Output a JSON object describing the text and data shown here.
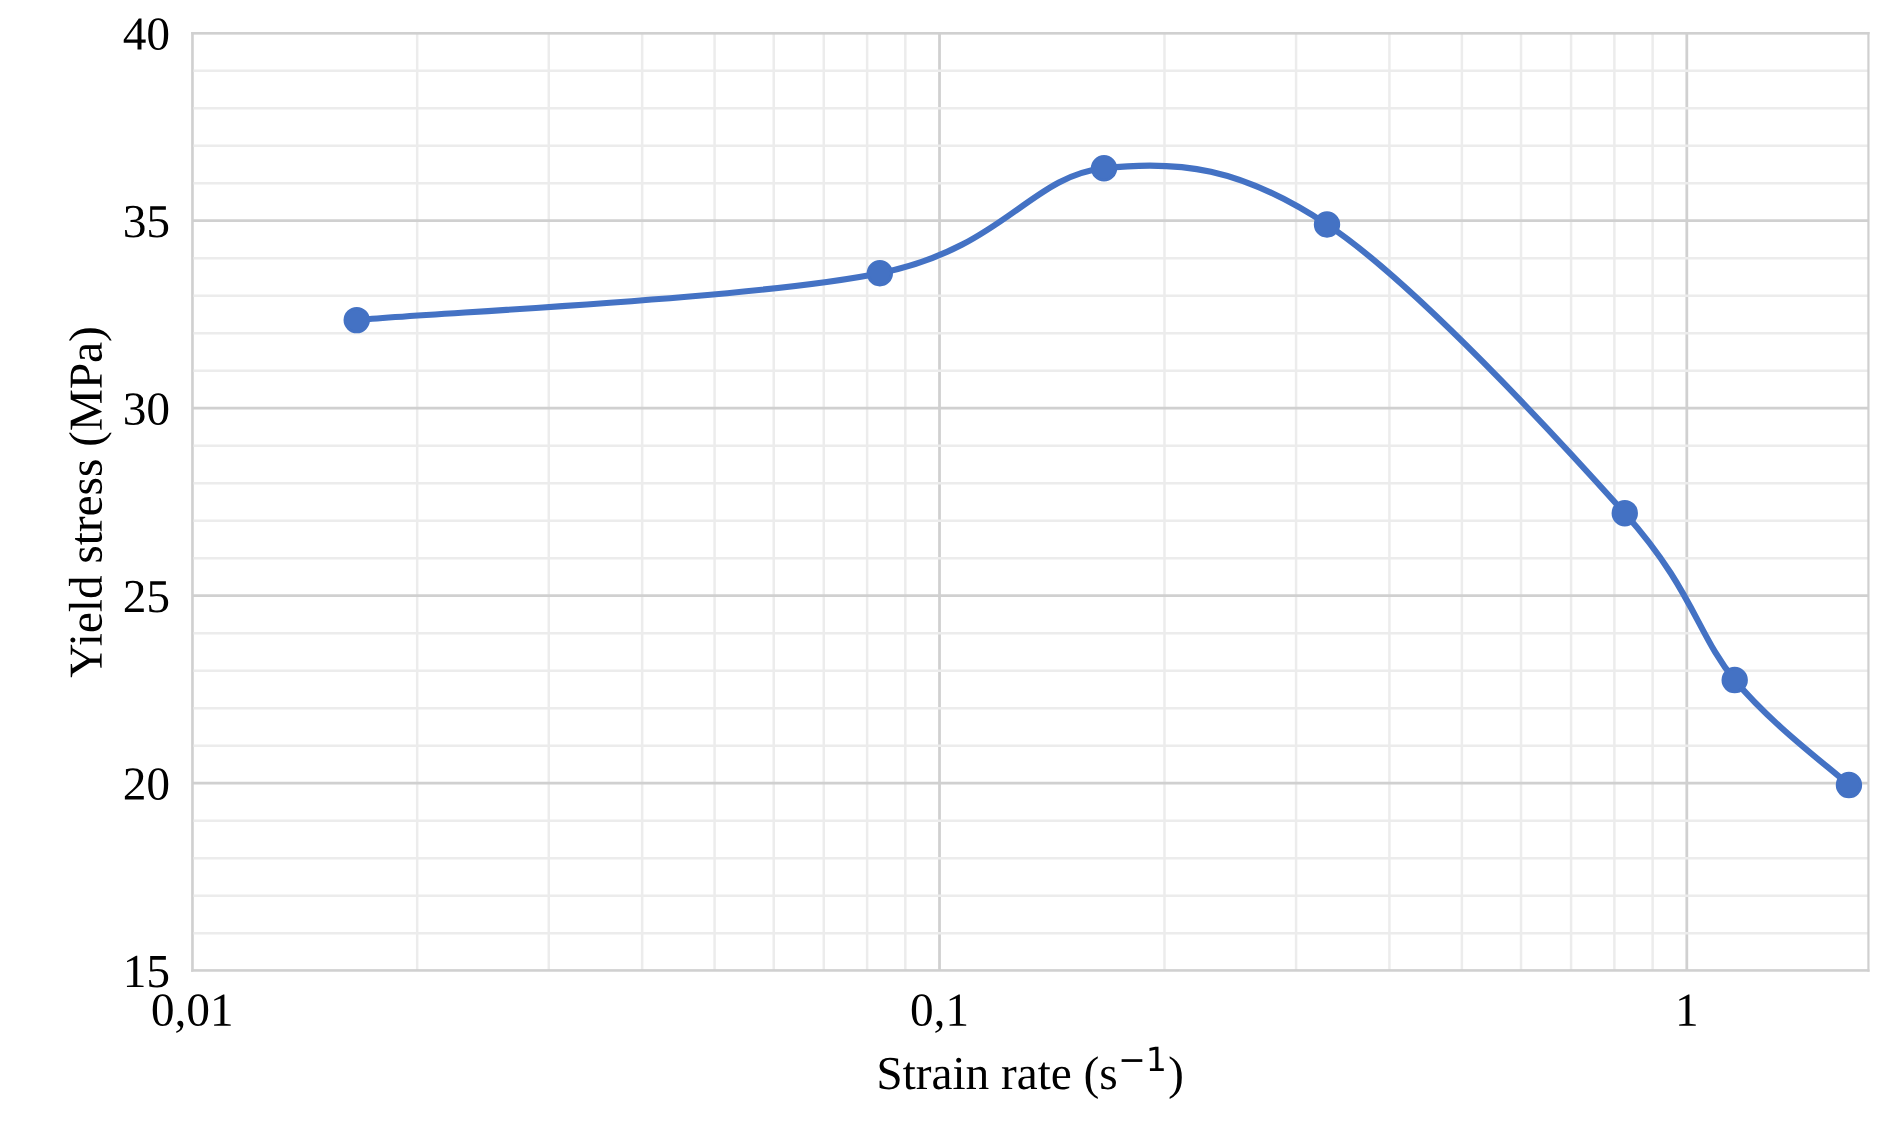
{
  "chart_data": {
    "type": "line",
    "xlabel": "Strain rate (s$^{−1}$)",
    "ylabel": "Yield stress (MPa)",
    "x": [
      0.0166,
      0.0832,
      0.166,
      0.33,
      0.826,
      1.159,
      1.648
    ],
    "series": [
      {
        "color": "#4472c4",
        "values": [
          32.35,
          33.6,
          36.4,
          34.9,
          27.2,
          22.75,
          19.95
        ]
      }
    ],
    "log": "x",
    "xlim": [
      0.01,
      1.75
    ],
    "xticks": [
      {
        "value": 0.01,
        "label": "0,01"
      },
      {
        "value": 0.1,
        "label": "0,1"
      },
      1
    ],
    "ylim": [
      15,
      40
    ],
    "yticks": [
      15,
      20,
      25,
      30,
      35,
      40
    ],
    "grid": true,
    "marker": "circle",
    "line_style": "solid",
    "legend": false
  }
}
